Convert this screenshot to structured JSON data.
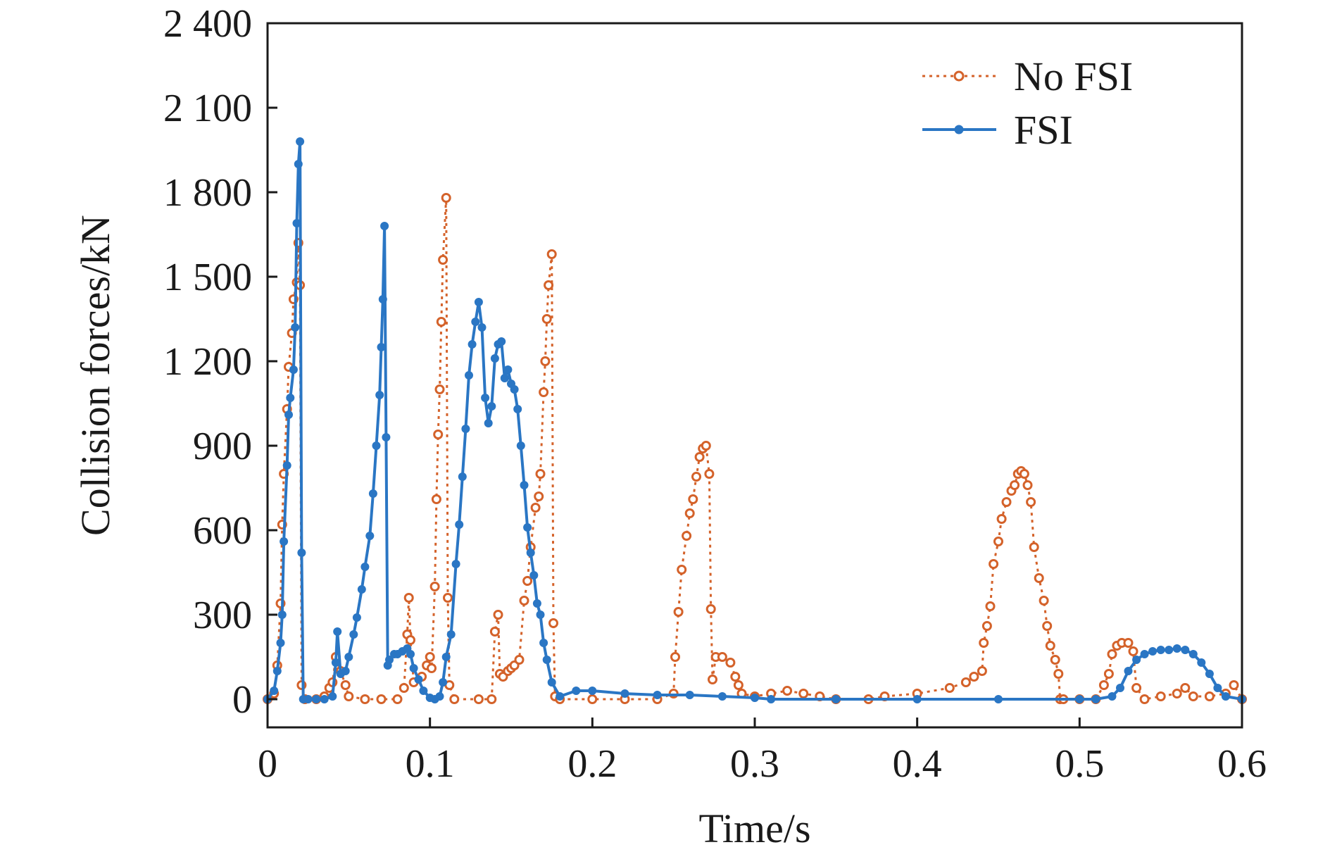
{
  "chart_data": {
    "type": "line",
    "title": "",
    "xlabel": "Time/s",
    "ylabel": "Collision forces/kN",
    "xlim": [
      0,
      0.6
    ],
    "ylim": [
      -100,
      2400
    ],
    "x_ticks": [
      0,
      0.1,
      0.2,
      0.3,
      0.4,
      0.5,
      0.6
    ],
    "x_tick_labels": [
      "0",
      "0.1",
      "0.2",
      "0.3",
      "0.4",
      "0.5",
      "0.6"
    ],
    "y_ticks": [
      0,
      300,
      600,
      900,
      1200,
      1500,
      1800,
      2100,
      2400
    ],
    "y_tick_labels": [
      "0",
      "300",
      "600",
      "900",
      "1 200",
      "1 500",
      "1 800",
      "2 100",
      "2 400"
    ],
    "grid": false,
    "legend_position": "top-right",
    "series": [
      {
        "name": "No FSI",
        "color": "#d4622a",
        "line_style": "dotted",
        "marker": "open-circle",
        "points": [
          [
            0.0,
            0
          ],
          [
            0.004,
            20
          ],
          [
            0.006,
            120
          ],
          [
            0.008,
            340
          ],
          [
            0.009,
            620
          ],
          [
            0.01,
            800
          ],
          [
            0.012,
            1030
          ],
          [
            0.013,
            1180
          ],
          [
            0.015,
            1300
          ],
          [
            0.016,
            1420
          ],
          [
            0.018,
            1480
          ],
          [
            0.019,
            1620
          ],
          [
            0.02,
            1470
          ],
          [
            0.021,
            50
          ],
          [
            0.023,
            0
          ],
          [
            0.03,
            0
          ],
          [
            0.035,
            10
          ],
          [
            0.038,
            40
          ],
          [
            0.04,
            60
          ],
          [
            0.042,
            150
          ],
          [
            0.045,
            100
          ],
          [
            0.048,
            50
          ],
          [
            0.05,
            10
          ],
          [
            0.06,
            0
          ],
          [
            0.07,
            0
          ],
          [
            0.08,
            0
          ],
          [
            0.084,
            40
          ],
          [
            0.086,
            230
          ],
          [
            0.087,
            360
          ],
          [
            0.088,
            210
          ],
          [
            0.09,
            60
          ],
          [
            0.095,
            80
          ],
          [
            0.098,
            120
          ],
          [
            0.1,
            150
          ],
          [
            0.101,
            110
          ],
          [
            0.103,
            400
          ],
          [
            0.104,
            710
          ],
          [
            0.105,
            940
          ],
          [
            0.106,
            1100
          ],
          [
            0.107,
            1340
          ],
          [
            0.108,
            1560
          ],
          [
            0.11,
            1780
          ],
          [
            0.111,
            360
          ],
          [
            0.112,
            50
          ],
          [
            0.115,
            0
          ],
          [
            0.13,
            0
          ],
          [
            0.138,
            0
          ],
          [
            0.14,
            240
          ],
          [
            0.142,
            300
          ],
          [
            0.143,
            90
          ],
          [
            0.145,
            80
          ],
          [
            0.148,
            100
          ],
          [
            0.15,
            110
          ],
          [
            0.152,
            120
          ],
          [
            0.155,
            140
          ],
          [
            0.158,
            350
          ],
          [
            0.16,
            420
          ],
          [
            0.162,
            540
          ],
          [
            0.165,
            680
          ],
          [
            0.167,
            720
          ],
          [
            0.168,
            800
          ],
          [
            0.17,
            1090
          ],
          [
            0.171,
            1200
          ],
          [
            0.172,
            1350
          ],
          [
            0.173,
            1470
          ],
          [
            0.175,
            1580
          ],
          [
            0.176,
            270
          ],
          [
            0.177,
            10
          ],
          [
            0.18,
            0
          ],
          [
            0.2,
            0
          ],
          [
            0.22,
            0
          ],
          [
            0.24,
            0
          ],
          [
            0.25,
            20
          ],
          [
            0.251,
            150
          ],
          [
            0.253,
            310
          ],
          [
            0.255,
            460
          ],
          [
            0.258,
            580
          ],
          [
            0.26,
            660
          ],
          [
            0.262,
            710
          ],
          [
            0.264,
            790
          ],
          [
            0.266,
            860
          ],
          [
            0.268,
            890
          ],
          [
            0.27,
            900
          ],
          [
            0.272,
            800
          ],
          [
            0.273,
            320
          ],
          [
            0.274,
            70
          ],
          [
            0.276,
            150
          ],
          [
            0.28,
            150
          ],
          [
            0.285,
            130
          ],
          [
            0.288,
            80
          ],
          [
            0.29,
            50
          ],
          [
            0.292,
            20
          ],
          [
            0.3,
            10
          ],
          [
            0.31,
            20
          ],
          [
            0.32,
            30
          ],
          [
            0.33,
            20
          ],
          [
            0.34,
            10
          ],
          [
            0.35,
            0
          ],
          [
            0.37,
            0
          ],
          [
            0.38,
            10
          ],
          [
            0.4,
            20
          ],
          [
            0.42,
            40
          ],
          [
            0.43,
            60
          ],
          [
            0.435,
            80
          ],
          [
            0.44,
            100
          ],
          [
            0.441,
            200
          ],
          [
            0.443,
            260
          ],
          [
            0.445,
            330
          ],
          [
            0.447,
            480
          ],
          [
            0.45,
            560
          ],
          [
            0.452,
            640
          ],
          [
            0.455,
            700
          ],
          [
            0.458,
            740
          ],
          [
            0.46,
            760
          ],
          [
            0.462,
            800
          ],
          [
            0.464,
            810
          ],
          [
            0.466,
            800
          ],
          [
            0.468,
            760
          ],
          [
            0.47,
            700
          ],
          [
            0.472,
            540
          ],
          [
            0.475,
            430
          ],
          [
            0.478,
            350
          ],
          [
            0.48,
            260
          ],
          [
            0.482,
            190
          ],
          [
            0.485,
            140
          ],
          [
            0.487,
            90
          ],
          [
            0.488,
            0
          ],
          [
            0.49,
            0
          ],
          [
            0.5,
            0
          ],
          [
            0.51,
            0
          ],
          [
            0.515,
            50
          ],
          [
            0.518,
            90
          ],
          [
            0.52,
            160
          ],
          [
            0.523,
            190
          ],
          [
            0.526,
            200
          ],
          [
            0.53,
            200
          ],
          [
            0.533,
            170
          ],
          [
            0.535,
            40
          ],
          [
            0.54,
            0
          ],
          [
            0.55,
            10
          ],
          [
            0.56,
            20
          ],
          [
            0.565,
            40
          ],
          [
            0.57,
            10
          ],
          [
            0.58,
            10
          ],
          [
            0.59,
            20
          ],
          [
            0.595,
            50
          ],
          [
            0.6,
            0
          ]
        ]
      },
      {
        "name": "FSI",
        "color": "#2a76c4",
        "line_style": "solid",
        "marker": "filled-circle",
        "points": [
          [
            0.0,
            0
          ],
          [
            0.004,
            30
          ],
          [
            0.006,
            100
          ],
          [
            0.008,
            200
          ],
          [
            0.009,
            300
          ],
          [
            0.01,
            560
          ],
          [
            0.012,
            830
          ],
          [
            0.013,
            1010
          ],
          [
            0.014,
            1070
          ],
          [
            0.016,
            1170
          ],
          [
            0.017,
            1320
          ],
          [
            0.018,
            1690
          ],
          [
            0.019,
            1900
          ],
          [
            0.02,
            1980
          ],
          [
            0.021,
            520
          ],
          [
            0.022,
            0
          ],
          [
            0.025,
            0
          ],
          [
            0.03,
            0
          ],
          [
            0.035,
            0
          ],
          [
            0.04,
            10
          ],
          [
            0.042,
            130
          ],
          [
            0.043,
            240
          ],
          [
            0.045,
            90
          ],
          [
            0.048,
            100
          ],
          [
            0.05,
            150
          ],
          [
            0.053,
            230
          ],
          [
            0.055,
            290
          ],
          [
            0.058,
            390
          ],
          [
            0.06,
            470
          ],
          [
            0.063,
            580
          ],
          [
            0.065,
            730
          ],
          [
            0.067,
            900
          ],
          [
            0.069,
            1080
          ],
          [
            0.07,
            1250
          ],
          [
            0.071,
            1420
          ],
          [
            0.072,
            1680
          ],
          [
            0.073,
            930
          ],
          [
            0.074,
            120
          ],
          [
            0.075,
            140
          ],
          [
            0.078,
            160
          ],
          [
            0.08,
            160
          ],
          [
            0.083,
            170
          ],
          [
            0.086,
            180
          ],
          [
            0.088,
            160
          ],
          [
            0.09,
            110
          ],
          [
            0.093,
            70
          ],
          [
            0.096,
            30
          ],
          [
            0.1,
            5
          ],
          [
            0.103,
            0
          ],
          [
            0.106,
            10
          ],
          [
            0.108,
            60
          ],
          [
            0.11,
            150
          ],
          [
            0.113,
            230
          ],
          [
            0.116,
            480
          ],
          [
            0.118,
            620
          ],
          [
            0.12,
            790
          ],
          [
            0.122,
            960
          ],
          [
            0.124,
            1150
          ],
          [
            0.126,
            1260
          ],
          [
            0.128,
            1340
          ],
          [
            0.13,
            1410
          ],
          [
            0.132,
            1320
          ],
          [
            0.134,
            1070
          ],
          [
            0.136,
            980
          ],
          [
            0.138,
            1040
          ],
          [
            0.14,
            1210
          ],
          [
            0.142,
            1260
          ],
          [
            0.144,
            1270
          ],
          [
            0.146,
            1140
          ],
          [
            0.148,
            1170
          ],
          [
            0.15,
            1120
          ],
          [
            0.152,
            1100
          ],
          [
            0.154,
            1030
          ],
          [
            0.156,
            900
          ],
          [
            0.158,
            760
          ],
          [
            0.16,
            610
          ],
          [
            0.162,
            520
          ],
          [
            0.164,
            440
          ],
          [
            0.166,
            340
          ],
          [
            0.168,
            300
          ],
          [
            0.17,
            200
          ],
          [
            0.172,
            140
          ],
          [
            0.175,
            60
          ],
          [
            0.18,
            10
          ],
          [
            0.19,
            30
          ],
          [
            0.2,
            30
          ],
          [
            0.22,
            20
          ],
          [
            0.24,
            15
          ],
          [
            0.26,
            15
          ],
          [
            0.28,
            10
          ],
          [
            0.3,
            5
          ],
          [
            0.31,
            0
          ],
          [
            0.35,
            0
          ],
          [
            0.4,
            0
          ],
          [
            0.45,
            0
          ],
          [
            0.5,
            0
          ],
          [
            0.51,
            0
          ],
          [
            0.52,
            10
          ],
          [
            0.525,
            40
          ],
          [
            0.53,
            100
          ],
          [
            0.535,
            140
          ],
          [
            0.54,
            160
          ],
          [
            0.545,
            170
          ],
          [
            0.55,
            175
          ],
          [
            0.555,
            175
          ],
          [
            0.56,
            180
          ],
          [
            0.565,
            175
          ],
          [
            0.57,
            160
          ],
          [
            0.575,
            130
          ],
          [
            0.58,
            90
          ],
          [
            0.585,
            40
          ],
          [
            0.59,
            10
          ],
          [
            0.6,
            0
          ]
        ]
      }
    ]
  }
}
